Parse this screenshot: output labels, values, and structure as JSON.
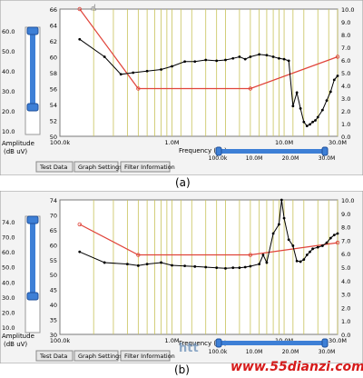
{
  "panels": [
    {
      "id": "a",
      "caption": "(a)",
      "amp": {
        "label1": "Amplitude",
        "label2": "(dB uV)",
        "ticks": [
          "60.0",
          "50.0",
          "40.0",
          "30.0",
          "20.0",
          "10.0"
        ]
      },
      "left_axis": {
        "min": 50,
        "max": 66,
        "ticks": [
          "66",
          "64",
          "62",
          "60",
          "58",
          "56",
          "54",
          "52",
          "50"
        ]
      },
      "right_axis": {
        "min": 0,
        "max": 10,
        "ticks": [
          "10.0",
          "9.0",
          "8.0",
          "7.0",
          "6.0",
          "5.0",
          "4.0",
          "3.0",
          "2.0",
          "1.0",
          "0.0"
        ]
      },
      "x_axis": {
        "label": "Frequency (Hz)",
        "ticks": [
          "100.0k",
          "1.0M",
          "10.0M",
          "30.0M"
        ]
      },
      "tabs": [
        "Test Data",
        "Graph Settings",
        "Filter Information"
      ],
      "zoom_labels": [
        "100.0k",
        "10.0M",
        "20.0M",
        "30.0M"
      ],
      "cursor_icon": "hand-cursor-icon",
      "colors": {
        "limit": "#e0443a",
        "data": "#000000",
        "markers": "#c8c25a",
        "slider": "#3d7fd6"
      }
    },
    {
      "id": "b",
      "caption": "(b)",
      "amp": {
        "label1": "Amplitude",
        "label2": "(dB uV)",
        "ticks": [
          "74.0",
          "70.0",
          "60.0",
          "50.0",
          "40.0",
          "30.0",
          "20.0",
          "10.0"
        ]
      },
      "left_axis": {
        "min": 30,
        "max": 74,
        "ticks": [
          "74",
          "70",
          "65",
          "60",
          "55",
          "50",
          "45",
          "40",
          "35",
          "30"
        ]
      },
      "right_axis": {
        "min": 0,
        "max": 10,
        "ticks": [
          "10.0",
          "9.0",
          "8.0",
          "7.0",
          "6.0",
          "5.0",
          "4.0",
          "3.0",
          "2.0",
          "1.0",
          "0.0"
        ]
      },
      "x_axis": {
        "label": "Frequency (Hz)",
        "ticks": [
          "100.0k",
          "1.0M",
          "10.0M",
          "30.0M"
        ]
      },
      "tabs": [
        "Test Data",
        "Graph Settings",
        "Filter Information"
      ],
      "zoom_labels": [
        "100.0k",
        "10.0M",
        "20.0M",
        "30.0M"
      ],
      "colors": {
        "limit": "#e0443a",
        "data": "#000000",
        "markers": "#c8c25a",
        "slider": "#3d7fd6"
      }
    }
  ],
  "watermark": {
    "site": "www.55dianzi.com",
    "logo": "htt"
  },
  "chart_data": [
    {
      "type": "line",
      "xlim": [
        100000,
        30000000
      ],
      "xscale": "log",
      "ylim": [
        50,
        66
      ],
      "y2lim": [
        0,
        10
      ],
      "xlabel": "Frequency (Hz)",
      "ylabel": "Amplitude (dB uV)",
      "series": [
        {
          "role": "limit",
          "x": [
            150000,
            500000,
            5000000,
            30000000
          ],
          "y": [
            66,
            56,
            56,
            60
          ]
        },
        {
          "role": "data",
          "x": [
            150000,
            250000,
            350000,
            450000,
            600000,
            800000,
            1000000,
            1300000,
            1600000,
            2000000,
            2500000,
            3000000,
            3500000,
            4000000,
            4500000,
            5000000,
            6000000,
            7000000,
            8000000,
            9000000,
            10000000,
            11000000,
            12000000,
            13000000,
            14000000,
            15000000,
            16000000,
            17000000,
            18000000,
            19000000,
            20000000,
            22000000,
            24000000,
            26000000,
            28000000,
            30000000
          ],
          "y": [
            62.2,
            60,
            57.8,
            58,
            58.2,
            58.4,
            58.8,
            59.4,
            59.4,
            59.6,
            59.5,
            59.6,
            59.8,
            60,
            59.7,
            60,
            60.3,
            60.2,
            60,
            59.8,
            59.7,
            59.5,
            53.8,
            55.5,
            53.5,
            51.8,
            51.3,
            51.5,
            51.8,
            52,
            52.4,
            53.3,
            54.5,
            55.6,
            57.1,
            57.6
          ]
        },
        {
          "role": "markers",
          "x": [
            200000,
            300000,
            400000,
            500000,
            600000,
            700000,
            800000,
            900000,
            1000000,
            1200000,
            1500000,
            2000000,
            2500000,
            3000000,
            4000000,
            5000000,
            6000000,
            7000000,
            8000000,
            9000000,
            10000000,
            12000000,
            15000000,
            20000000,
            25000000,
            30000000
          ]
        }
      ]
    },
    {
      "type": "line",
      "xlim": [
        100000,
        30000000
      ],
      "xscale": "log",
      "ylim": [
        30,
        74
      ],
      "y2lim": [
        0,
        10
      ],
      "xlabel": "Frequency (Hz)",
      "ylabel": "Amplitude (dB uV)",
      "series": [
        {
          "role": "limit",
          "x": [
            150000,
            500000,
            5000000,
            30000000
          ],
          "y": [
            66,
            56,
            56,
            60
          ]
        },
        {
          "role": "data",
          "x": [
            150000,
            250000,
            400000,
            500000,
            600000,
            800000,
            1000000,
            1300000,
            1600000,
            2000000,
            2500000,
            3000000,
            3500000,
            4000000,
            4500000,
            5000000,
            6000000,
            6500000,
            7000000,
            8000000,
            9000000,
            9500000,
            10000000,
            11000000,
            12000000,
            13000000,
            14000000,
            15000000,
            16000000,
            17000000,
            18000000,
            20000000,
            22000000,
            24000000,
            26000000,
            28000000,
            30000000
          ],
          "y": [
            57,
            53.5,
            53,
            52.5,
            53,
            53.5,
            52.6,
            52.4,
            52.2,
            52,
            51.8,
            51.6,
            51.8,
            51.8,
            52,
            52.3,
            53,
            56,
            53.5,
            63,
            66,
            74,
            68,
            61,
            59,
            54,
            53.8,
            54.5,
            56,
            57,
            58,
            58.5,
            59,
            60,
            61.5,
            62.5,
            63
          ]
        },
        {
          "role": "markers",
          "x": [
            200000,
            300000,
            400000,
            500000,
            600000,
            700000,
            800000,
            900000,
            1000000,
            1200000,
            1500000,
            2000000,
            2500000,
            3000000,
            4000000,
            5000000,
            6000000,
            7000000,
            8000000,
            9000000,
            10000000,
            12000000,
            15000000,
            20000000,
            25000000,
            30000000
          ]
        }
      ]
    }
  ]
}
